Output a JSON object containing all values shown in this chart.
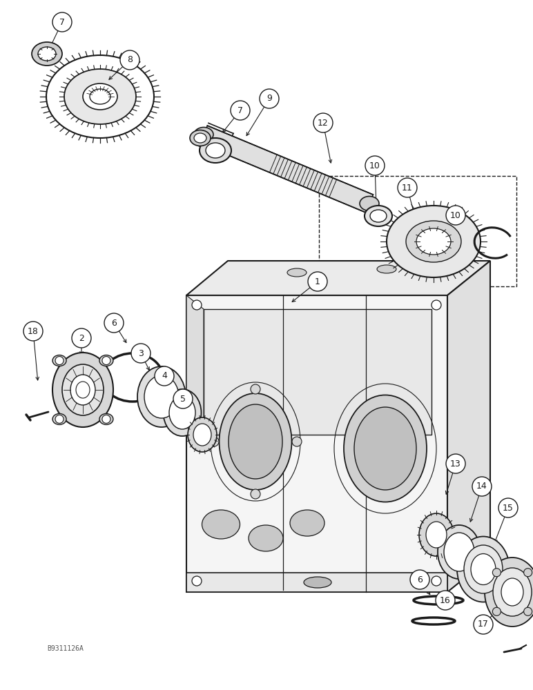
{
  "bg": "#ffffff",
  "lc": "#1a1a1a",
  "watermark": "B9311126A",
  "fig_w": 7.72,
  "fig_h": 10.0,
  "dpi": 100
}
